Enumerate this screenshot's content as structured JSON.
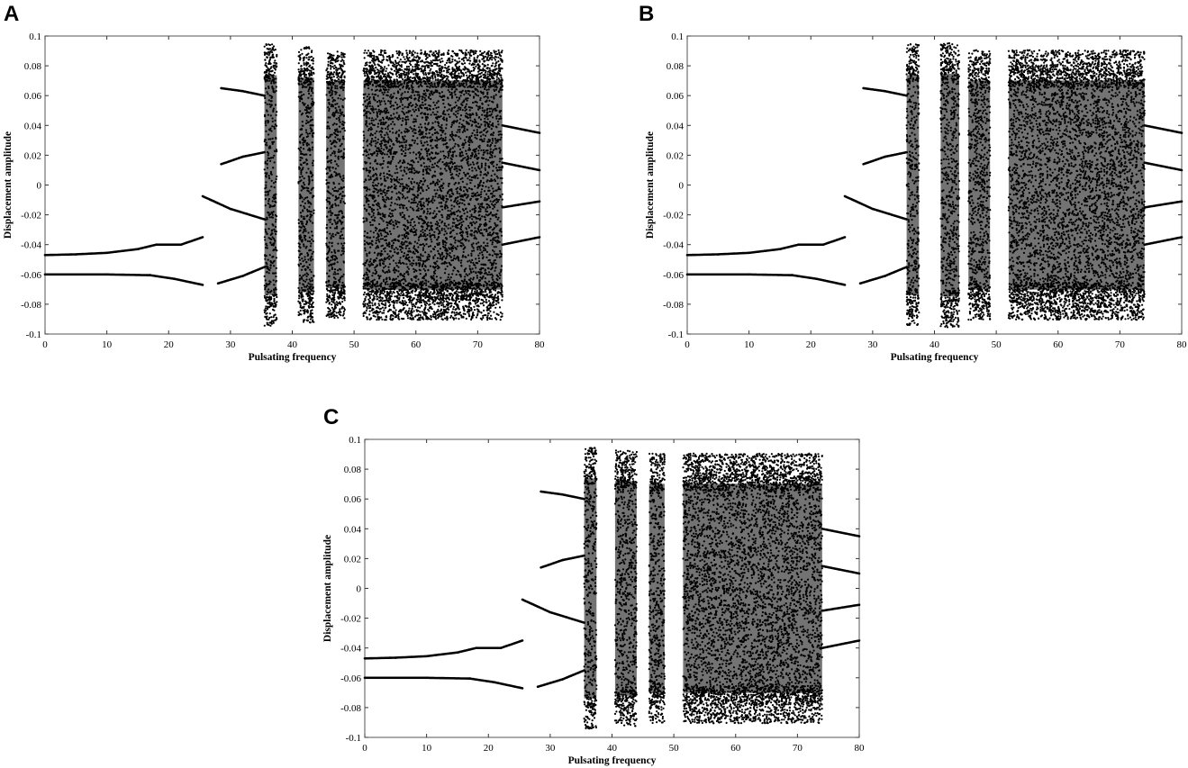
{
  "figure": {
    "panels": [
      {
        "letter": "A",
        "x_label": "Pulsating frequency",
        "y_label": "Displacement amplitude"
      },
      {
        "letter": "B",
        "x_label": "Pulsating frequency",
        "y_label": "Displacement amplitude"
      },
      {
        "letter": "C",
        "x_label": "Pulsating frequency",
        "y_label": "Displacement amplitude"
      }
    ]
  },
  "chart_data": [
    {
      "type": "scatter",
      "panel": "A",
      "title": "",
      "xlabel": "Pulsating frequency",
      "ylabel": "Displacement amplitude",
      "xlim": [
        0,
        80
      ],
      "ylim": [
        -0.1,
        0.1
      ],
      "x_ticks": [
        0,
        10,
        20,
        30,
        40,
        50,
        60,
        70,
        80
      ],
      "y_ticks": [
        -0.1,
        -0.08,
        -0.06,
        -0.04,
        -0.02,
        0,
        0.02,
        0.04,
        0.06,
        0.08,
        0.1
      ],
      "grid": false,
      "series": [
        {
          "values": [
            [
              0,
              -0.047
            ],
            [
              5,
              -0.0465
            ],
            [
              10,
              -0.0455
            ],
            [
              15,
              -0.043
            ],
            [
              18,
              -0.04
            ],
            [
              22,
              -0.04
            ],
            [
              25.5,
              -0.035
            ]
          ]
        },
        {
          "values": [
            [
              0,
              -0.06
            ],
            [
              10,
              -0.06
            ],
            [
              17,
              -0.0605
            ],
            [
              21,
              -0.063
            ],
            [
              25.5,
              -0.067
            ]
          ]
        },
        {
          "values": [
            [
              25.5,
              -0.0075
            ],
            [
              30,
              -0.016
            ],
            [
              35.5,
              -0.023
            ]
          ]
        },
        {
          "values": [
            [
              28,
              -0.066
            ],
            [
              32,
              -0.061
            ],
            [
              35.5,
              -0.055
            ]
          ]
        },
        {
          "values": [
            [
              28.5,
              0.065
            ],
            [
              32,
              0.063
            ],
            [
              35.5,
              0.06
            ]
          ]
        },
        {
          "values": [
            [
              28.5,
              0.014
            ],
            [
              32,
              0.019
            ],
            [
              35.5,
              0.022
            ]
          ]
        },
        {
          "values": [
            [
              74,
              0.04
            ],
            [
              80,
              0.035
            ]
          ]
        },
        {
          "values": [
            [
              74,
              0.015
            ],
            [
              80,
              0.01
            ]
          ]
        },
        {
          "values": [
            [
              74,
              -0.015
            ],
            [
              80,
              -0.011
            ]
          ]
        },
        {
          "values": [
            [
              74,
              -0.04
            ],
            [
              80,
              -0.035
            ]
          ]
        }
      ],
      "chaotic_bands": [
        {
          "x_range": [
            35.5,
            37.5
          ],
          "y_range": [
            -0.082,
            0.082
          ]
        },
        {
          "x_range": [
            41,
            43.5
          ],
          "y_range": [
            -0.08,
            0.08
          ]
        },
        {
          "x_range": [
            45.5,
            48.5
          ],
          "y_range": [
            -0.077,
            0.077
          ]
        },
        {
          "x_range": [
            51.5,
            74
          ],
          "y_range": [
            -0.078,
            0.078
          ]
        }
      ]
    },
    {
      "type": "scatter",
      "panel": "B",
      "title": "",
      "xlabel": "Pulsating frequency",
      "ylabel": "Displacement amplitude",
      "xlim": [
        0,
        80
      ],
      "ylim": [
        -0.1,
        0.1
      ],
      "x_ticks": [
        0,
        10,
        20,
        30,
        40,
        50,
        60,
        70,
        80
      ],
      "y_ticks": [
        -0.1,
        -0.08,
        -0.06,
        -0.04,
        -0.02,
        0,
        0.02,
        0.04,
        0.06,
        0.08,
        0.1
      ],
      "grid": false,
      "series": [
        {
          "values": [
            [
              0,
              -0.047
            ],
            [
              5,
              -0.0465
            ],
            [
              10,
              -0.0455
            ],
            [
              15,
              -0.043
            ],
            [
              18,
              -0.04
            ],
            [
              22,
              -0.04
            ],
            [
              25.5,
              -0.035
            ]
          ]
        },
        {
          "values": [
            [
              0,
              -0.06
            ],
            [
              10,
              -0.06
            ],
            [
              17,
              -0.0605
            ],
            [
              21,
              -0.063
            ],
            [
              25.5,
              -0.067
            ]
          ]
        },
        {
          "values": [
            [
              25.5,
              -0.0075
            ],
            [
              30,
              -0.016
            ],
            [
              35.5,
              -0.023
            ]
          ]
        },
        {
          "values": [
            [
              28,
              -0.066
            ],
            [
              32,
              -0.061
            ],
            [
              35.5,
              -0.055
            ]
          ]
        },
        {
          "values": [
            [
              28.5,
              0.065
            ],
            [
              32,
              0.063
            ],
            [
              35.5,
              0.06
            ]
          ]
        },
        {
          "values": [
            [
              28.5,
              0.014
            ],
            [
              32,
              0.019
            ],
            [
              35.5,
              0.022
            ]
          ]
        },
        {
          "values": [
            [
              74,
              0.04
            ],
            [
              80,
              0.035
            ]
          ]
        },
        {
          "values": [
            [
              74,
              0.015
            ],
            [
              80,
              0.01
            ]
          ]
        },
        {
          "values": [
            [
              74,
              -0.015
            ],
            [
              80,
              -0.011
            ]
          ]
        },
        {
          "values": [
            [
              74,
              -0.04
            ],
            [
              80,
              -0.035
            ]
          ]
        }
      ],
      "chaotic_bands": [
        {
          "x_range": [
            35.5,
            37.5
          ],
          "y_range": [
            -0.082,
            0.082
          ]
        },
        {
          "x_range": [
            41,
            44
          ],
          "y_range": [
            -0.083,
            0.083
          ]
        },
        {
          "x_range": [
            45.5,
            49
          ],
          "y_range": [
            -0.078,
            0.078
          ]
        },
        {
          "x_range": [
            52,
            74
          ],
          "y_range": [
            -0.078,
            0.078
          ]
        }
      ]
    },
    {
      "type": "scatter",
      "panel": "C",
      "title": "",
      "xlabel": "Pulsating frequency",
      "ylabel": "Displacement amplitude",
      "xlim": [
        0,
        80
      ],
      "ylim": [
        -0.1,
        0.1
      ],
      "x_ticks": [
        0,
        10,
        20,
        30,
        40,
        50,
        60,
        70,
        80
      ],
      "y_ticks": [
        -0.1,
        -0.08,
        -0.06,
        -0.04,
        -0.02,
        0,
        0.02,
        0.04,
        0.06,
        0.08,
        0.1
      ],
      "grid": false,
      "series": [
        {
          "values": [
            [
              0,
              -0.047
            ],
            [
              5,
              -0.0465
            ],
            [
              10,
              -0.0455
            ],
            [
              15,
              -0.043
            ],
            [
              18,
              -0.04
            ],
            [
              22,
              -0.04
            ],
            [
              25.5,
              -0.035
            ]
          ]
        },
        {
          "values": [
            [
              0,
              -0.06
            ],
            [
              10,
              -0.06
            ],
            [
              17,
              -0.0605
            ],
            [
              21,
              -0.063
            ],
            [
              25.5,
              -0.067
            ]
          ]
        },
        {
          "values": [
            [
              25.5,
              -0.0075
            ],
            [
              30,
              -0.016
            ],
            [
              35.5,
              -0.023
            ]
          ]
        },
        {
          "values": [
            [
              28,
              -0.066
            ],
            [
              32,
              -0.061
            ],
            [
              35.5,
              -0.055
            ]
          ]
        },
        {
          "values": [
            [
              28.5,
              0.065
            ],
            [
              32,
              0.063
            ],
            [
              35.5,
              0.06
            ]
          ]
        },
        {
          "values": [
            [
              28.5,
              0.014
            ],
            [
              32,
              0.019
            ],
            [
              35.5,
              0.022
            ]
          ]
        },
        {
          "values": [
            [
              74,
              0.04
            ],
            [
              80,
              0.035
            ]
          ]
        },
        {
          "values": [
            [
              74,
              0.015
            ],
            [
              80,
              0.01
            ]
          ]
        },
        {
          "values": [
            [
              74,
              -0.015
            ],
            [
              80,
              -0.011
            ]
          ]
        },
        {
          "values": [
            [
              74,
              -0.04
            ],
            [
              80,
              -0.035
            ]
          ]
        }
      ],
      "chaotic_bands": [
        {
          "x_range": [
            35.5,
            37.5
          ],
          "y_range": [
            -0.082,
            0.082
          ]
        },
        {
          "x_range": [
            40.5,
            44
          ],
          "y_range": [
            -0.08,
            0.08
          ]
        },
        {
          "x_range": [
            46,
            48.5
          ],
          "y_range": [
            -0.078,
            0.078
          ]
        },
        {
          "x_range": [
            51.5,
            74
          ],
          "y_range": [
            -0.078,
            0.078
          ]
        }
      ]
    }
  ]
}
